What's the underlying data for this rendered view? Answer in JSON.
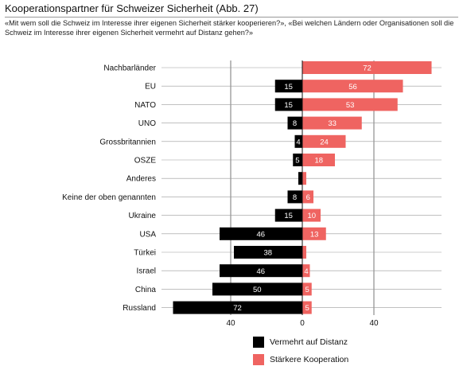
{
  "chart_data": {
    "type": "bar",
    "title": "Kooperationspartner für Schweizer Sicherheit (Abb. 27)",
    "subtitle": "«Mit wem soll die Schweiz im Interesse ihrer eigenen Sicherheit stärker kooperieren?», «Bei welchen Ländern oder Organisationen soll die Schweiz im Interesse ihrer eigenen Sicherheit vermehrt auf Distanz gehen?»",
    "categories": [
      "Nachbarländer",
      "EU",
      "NATO",
      "UNO",
      "Grossbritannien",
      "OSZE",
      "Anderes",
      "Keine der oben genannten",
      "Ukraine",
      "USA",
      "Türkei",
      "Israel",
      "China",
      "Russland"
    ],
    "series": [
      {
        "name": "Vermehrt auf Distanz",
        "color": "#000000",
        "direction": "left",
        "values": [
          null,
          15,
          15,
          8,
          4,
          5,
          2,
          8,
          15,
          46,
          38,
          46,
          50,
          72
        ],
        "labels": [
          "",
          "15",
          "15",
          "8",
          "4",
          "5",
          "",
          "8",
          "15",
          "46",
          "38",
          "46",
          "50",
          "72"
        ]
      },
      {
        "name": "Stärkere Kooperation",
        "color": "#ef6461",
        "direction": "right",
        "values": [
          72,
          56,
          53,
          33,
          24,
          18,
          2,
          6,
          10,
          13,
          2,
          4,
          5,
          5
        ],
        "labels": [
          "72",
          "56",
          "53",
          "33",
          "24",
          "18",
          "",
          "6",
          "10",
          "13",
          "",
          "4",
          "5",
          "5"
        ]
      }
    ],
    "xlim": [
      -72,
      72
    ],
    "ticks": [
      -40,
      0,
      40
    ],
    "tick_labels": [
      "40",
      "0",
      "40"
    ],
    "grid": true,
    "legend": "bottom-center"
  }
}
